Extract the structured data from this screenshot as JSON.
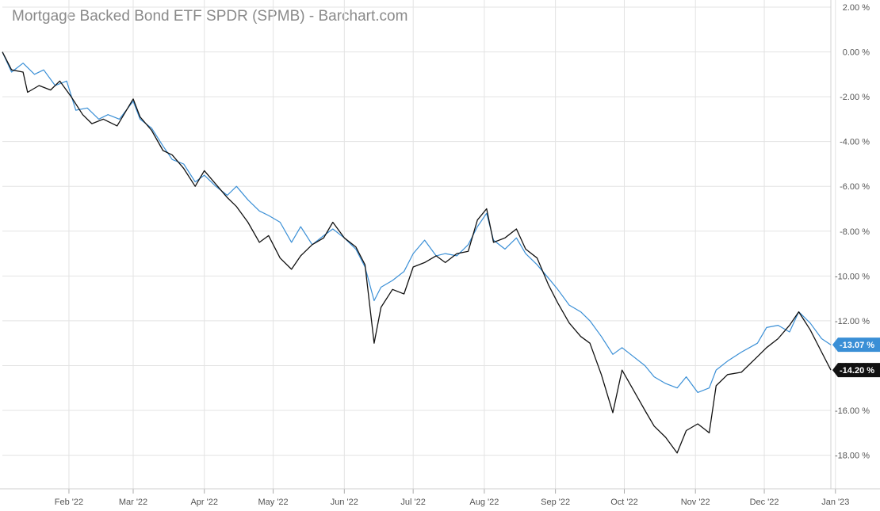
{
  "chart_data": {
    "type": "line",
    "title": "Mortgage Backed Bond ETF SPDR (SPMB) - Barchart.com",
    "x_ticks": [
      "Feb '22",
      "Mar '22",
      "Apr '22",
      "May '22",
      "Jun '22",
      "Jul '22",
      "Aug '22",
      "Sep '22",
      "Oct '22",
      "Nov '22",
      "Dec '22",
      "Jan '23"
    ],
    "y_ticks": [
      "2.00 %",
      "0.00 %",
      "-2.00 %",
      "-4.00 %",
      "-6.00 %",
      "-8.00 %",
      "-10.00 %",
      "-12.00 %",
      "-14.00 %",
      "-16.00 %",
      "-18.00 %"
    ],
    "ylim": [
      -19.5,
      2.0
    ],
    "xlim": [
      "2022-01-03",
      "2022-12-30"
    ],
    "grid": true,
    "series": [
      {
        "color": "#3a8fd6",
        "last_label": "-13.07 %",
        "points": [
          [
            "2022-01-03",
            0
          ],
          [
            "2022-01-07",
            -0.9
          ],
          [
            "2022-01-12",
            -0.5
          ],
          [
            "2022-01-17",
            -1.0
          ],
          [
            "2022-01-21",
            -0.8
          ],
          [
            "2022-01-26",
            -1.5
          ],
          [
            "2022-01-31",
            -1.3
          ],
          [
            "2022-02-04",
            -2.6
          ],
          [
            "2022-02-09",
            -2.5
          ],
          [
            "2022-02-14",
            -3.0
          ],
          [
            "2022-02-18",
            -2.8
          ],
          [
            "2022-02-23",
            -3.0
          ],
          [
            "2022-03-01",
            -2.2
          ],
          [
            "2022-03-04",
            -3.0
          ],
          [
            "2022-03-09",
            -3.4
          ],
          [
            "2022-03-14",
            -4.2
          ],
          [
            "2022-03-18",
            -4.8
          ],
          [
            "2022-03-23",
            -5.0
          ],
          [
            "2022-03-28",
            -5.8
          ],
          [
            "2022-04-01",
            -5.5
          ],
          [
            "2022-04-06",
            -6.0
          ],
          [
            "2022-04-11",
            -6.4
          ],
          [
            "2022-04-15",
            -6.0
          ],
          [
            "2022-04-20",
            -6.6
          ],
          [
            "2022-04-25",
            -7.1
          ],
          [
            "2022-04-29",
            -7.3
          ],
          [
            "2022-05-04",
            -7.6
          ],
          [
            "2022-05-09",
            -8.5
          ],
          [
            "2022-05-13",
            -7.8
          ],
          [
            "2022-05-18",
            -8.6
          ],
          [
            "2022-05-23",
            -8.2
          ],
          [
            "2022-05-27",
            -7.9
          ],
          [
            "2022-06-01",
            -8.3
          ],
          [
            "2022-06-06",
            -8.8
          ],
          [
            "2022-06-10",
            -9.6
          ],
          [
            "2022-06-14",
            -11.1
          ],
          [
            "2022-06-17",
            -10.5
          ],
          [
            "2022-06-22",
            -10.2
          ],
          [
            "2022-06-27",
            -9.8
          ],
          [
            "2022-07-01",
            -9.0
          ],
          [
            "2022-07-06",
            -8.4
          ],
          [
            "2022-07-11",
            -9.1
          ],
          [
            "2022-07-15",
            -9.0
          ],
          [
            "2022-07-20",
            -9.1
          ],
          [
            "2022-07-25",
            -8.6
          ],
          [
            "2022-07-29",
            -7.8
          ],
          [
            "2022-08-02",
            -7.2
          ],
          [
            "2022-08-05",
            -8.4
          ],
          [
            "2022-08-10",
            -8.8
          ],
          [
            "2022-08-15",
            -8.3
          ],
          [
            "2022-08-19",
            -9.0
          ],
          [
            "2022-08-24",
            -9.5
          ],
          [
            "2022-08-29",
            -10.1
          ],
          [
            "2022-09-02",
            -10.6
          ],
          [
            "2022-09-07",
            -11.3
          ],
          [
            "2022-09-12",
            -11.6
          ],
          [
            "2022-09-16",
            -12.0
          ],
          [
            "2022-09-21",
            -12.7
          ],
          [
            "2022-09-26",
            -13.5
          ],
          [
            "2022-09-30",
            -13.2
          ],
          [
            "2022-10-05",
            -13.6
          ],
          [
            "2022-10-10",
            -14.0
          ],
          [
            "2022-10-14",
            -14.5
          ],
          [
            "2022-10-19",
            -14.8
          ],
          [
            "2022-10-24",
            -15.0
          ],
          [
            "2022-10-28",
            -14.5
          ],
          [
            "2022-11-02",
            -15.2
          ],
          [
            "2022-11-07",
            -15.0
          ],
          [
            "2022-11-10",
            -14.2
          ],
          [
            "2022-11-15",
            -13.8
          ],
          [
            "2022-11-21",
            -13.4
          ],
          [
            "2022-11-28",
            -13.0
          ],
          [
            "2022-12-02",
            -12.3
          ],
          [
            "2022-12-07",
            -12.2
          ],
          [
            "2022-12-12",
            -12.5
          ],
          [
            "2022-12-16",
            -11.6
          ],
          [
            "2022-12-21",
            -12.1
          ],
          [
            "2022-12-26",
            -12.8
          ],
          [
            "2022-12-30",
            -13.07
          ]
        ]
      },
      {
        "color": "#111111",
        "last_label": "-14.20 %",
        "points": [
          [
            "2022-01-03",
            0
          ],
          [
            "2022-01-07",
            -0.8
          ],
          [
            "2022-01-12",
            -0.9
          ],
          [
            "2022-01-14",
            -1.8
          ],
          [
            "2022-01-19",
            -1.5
          ],
          [
            "2022-01-24",
            -1.7
          ],
          [
            "2022-01-28",
            -1.3
          ],
          [
            "2022-02-02",
            -2.0
          ],
          [
            "2022-02-07",
            -2.8
          ],
          [
            "2022-02-11",
            -3.2
          ],
          [
            "2022-02-16",
            -3.0
          ],
          [
            "2022-02-22",
            -3.3
          ],
          [
            "2022-03-01",
            -2.1
          ],
          [
            "2022-03-04",
            -2.9
          ],
          [
            "2022-03-09",
            -3.5
          ],
          [
            "2022-03-14",
            -4.4
          ],
          [
            "2022-03-18",
            -4.6
          ],
          [
            "2022-03-23",
            -5.2
          ],
          [
            "2022-03-28",
            -6.0
          ],
          [
            "2022-04-01",
            -5.3
          ],
          [
            "2022-04-06",
            -5.9
          ],
          [
            "2022-04-11",
            -6.5
          ],
          [
            "2022-04-15",
            -6.9
          ],
          [
            "2022-04-20",
            -7.6
          ],
          [
            "2022-04-25",
            -8.5
          ],
          [
            "2022-04-29",
            -8.2
          ],
          [
            "2022-05-04",
            -9.2
          ],
          [
            "2022-05-09",
            -9.7
          ],
          [
            "2022-05-13",
            -9.1
          ],
          [
            "2022-05-18",
            -8.6
          ],
          [
            "2022-05-23",
            -8.3
          ],
          [
            "2022-05-27",
            -7.6
          ],
          [
            "2022-06-01",
            -8.3
          ],
          [
            "2022-06-06",
            -8.7
          ],
          [
            "2022-06-10",
            -9.5
          ],
          [
            "2022-06-14",
            -13.0
          ],
          [
            "2022-06-17",
            -11.4
          ],
          [
            "2022-06-22",
            -10.6
          ],
          [
            "2022-06-27",
            -10.8
          ],
          [
            "2022-07-01",
            -9.6
          ],
          [
            "2022-07-06",
            -9.4
          ],
          [
            "2022-07-11",
            -9.1
          ],
          [
            "2022-07-15",
            -9.4
          ],
          [
            "2022-07-20",
            -9.0
          ],
          [
            "2022-07-25",
            -8.9
          ],
          [
            "2022-07-29",
            -7.5
          ],
          [
            "2022-08-02",
            -7.0
          ],
          [
            "2022-08-05",
            -8.5
          ],
          [
            "2022-08-10",
            -8.3
          ],
          [
            "2022-08-15",
            -7.9
          ],
          [
            "2022-08-19",
            -8.8
          ],
          [
            "2022-08-24",
            -9.2
          ],
          [
            "2022-08-29",
            -10.4
          ],
          [
            "2022-09-02",
            -11.2
          ],
          [
            "2022-09-07",
            -12.1
          ],
          [
            "2022-09-12",
            -12.7
          ],
          [
            "2022-09-16",
            -13.0
          ],
          [
            "2022-09-21",
            -14.4
          ],
          [
            "2022-09-26",
            -16.1
          ],
          [
            "2022-09-30",
            -14.2
          ],
          [
            "2022-10-05",
            -15.1
          ],
          [
            "2022-10-10",
            -16.0
          ],
          [
            "2022-10-14",
            -16.7
          ],
          [
            "2022-10-19",
            -17.2
          ],
          [
            "2022-10-24",
            -17.9
          ],
          [
            "2022-10-28",
            -16.9
          ],
          [
            "2022-11-02",
            -16.6
          ],
          [
            "2022-11-07",
            -17.0
          ],
          [
            "2022-11-10",
            -14.9
          ],
          [
            "2022-11-15",
            -14.4
          ],
          [
            "2022-11-21",
            -14.3
          ],
          [
            "2022-11-28",
            -13.6
          ],
          [
            "2022-12-02",
            -13.2
          ],
          [
            "2022-12-07",
            -12.8
          ],
          [
            "2022-12-12",
            -12.2
          ],
          [
            "2022-12-16",
            -11.6
          ],
          [
            "2022-12-21",
            -12.4
          ],
          [
            "2022-12-26",
            -13.4
          ],
          [
            "2022-12-30",
            -14.2
          ]
        ]
      }
    ]
  }
}
